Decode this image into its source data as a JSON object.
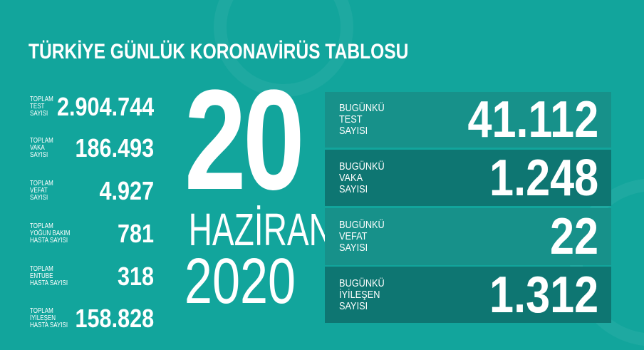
{
  "title": "TÜRKİYE GÜNLÜK KORONAVİRÜS TABLOSU",
  "totals": [
    {
      "label": "TOPLAM\nTEST\nSAYISI",
      "value": "2.904.744"
    },
    {
      "label": "TOPLAM\nVAKA\nSAYISI",
      "value": "186.493"
    },
    {
      "label": "TOPLAM\nVEFAT\nSAYISI",
      "value": "4.927"
    },
    {
      "label": "TOPLAM\nYOĞUN BAKIM\nHASTA SAYISI",
      "value": "781"
    },
    {
      "label": "TOPLAM\nENTUBE\nHASTA SAYISI",
      "value": "318"
    },
    {
      "label": "TOPLAM\nİYİLEŞEN\nHASTA SAYISI",
      "value": "158.828"
    }
  ],
  "date": {
    "day": "20",
    "month": "HAZİRAN",
    "year": "2020"
  },
  "today": [
    {
      "label": "BUGÜNKÜ\nTEST\nSAYISI",
      "value": "41.112"
    },
    {
      "label": "BUGÜNKÜ\nVAKA\nSAYISI",
      "value": "1.248"
    },
    {
      "label": "BUGÜNKÜ\nVEFAT\nSAYISI",
      "value": "22"
    },
    {
      "label": "BUGÜNKÜ\nİYİLEŞEN\nSAYISI",
      "value": "1.312"
    }
  ],
  "colors": {
    "background": "#12a59c",
    "box_light": "#17918a",
    "box_dark": "#0e7672"
  }
}
